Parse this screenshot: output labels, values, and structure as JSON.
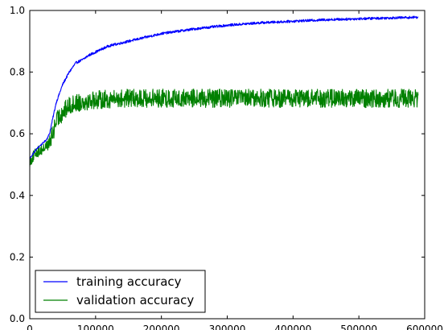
{
  "chart_data": {
    "type": "line",
    "title": "",
    "xlabel": "",
    "ylabel": "",
    "xlim": [
      0,
      600000
    ],
    "ylim": [
      0.0,
      1.0
    ],
    "grid": false,
    "legend_position": "lower-left",
    "x_ticks": [
      {
        "value": 0,
        "label": "0"
      },
      {
        "value": 100000,
        "label": "100000"
      },
      {
        "value": 200000,
        "label": "200000"
      },
      {
        "value": 300000,
        "label": "300000"
      },
      {
        "value": 400000,
        "label": "400000"
      },
      {
        "value": 500000,
        "label": "500000"
      },
      {
        "value": 600000,
        "label": "600000"
      }
    ],
    "y_ticks": [
      {
        "value": 0.0,
        "label": "0.0"
      },
      {
        "value": 0.2,
        "label": "0.2"
      },
      {
        "value": 0.4,
        "label": "0.4"
      },
      {
        "value": 0.6,
        "label": "0.6"
      },
      {
        "value": 0.8,
        "label": "0.8"
      },
      {
        "value": 1.0,
        "label": "1.0"
      }
    ],
    "series": [
      {
        "name": "training accuracy",
        "color": "#0000ff",
        "noise": 0.004,
        "x": [
          0,
          10000,
          20000,
          25000,
          30000,
          35000,
          40000,
          45000,
          50000,
          60000,
          70000,
          80000,
          90000,
          100000,
          120000,
          140000,
          160000,
          180000,
          200000,
          250000,
          300000,
          350000,
          400000,
          450000,
          500000,
          550000,
          590000
        ],
        "y": [
          0.52,
          0.55,
          0.57,
          0.58,
          0.6,
          0.65,
          0.7,
          0.73,
          0.76,
          0.8,
          0.83,
          0.84,
          0.855,
          0.865,
          0.885,
          0.895,
          0.905,
          0.915,
          0.925,
          0.94,
          0.952,
          0.96,
          0.965,
          0.97,
          0.973,
          0.976,
          0.978
        ]
      },
      {
        "name": "validation accuracy",
        "color": "#008000",
        "noise": 0.03,
        "x": [
          0,
          10000,
          20000,
          25000,
          30000,
          35000,
          40000,
          50000,
          60000,
          70000,
          80000,
          100000,
          150000,
          200000,
          300000,
          400000,
          500000,
          590000
        ],
        "y": [
          0.51,
          0.54,
          0.55,
          0.56,
          0.57,
          0.6,
          0.64,
          0.67,
          0.69,
          0.7,
          0.705,
          0.71,
          0.715,
          0.715,
          0.715,
          0.715,
          0.715,
          0.715
        ]
      }
    ]
  }
}
